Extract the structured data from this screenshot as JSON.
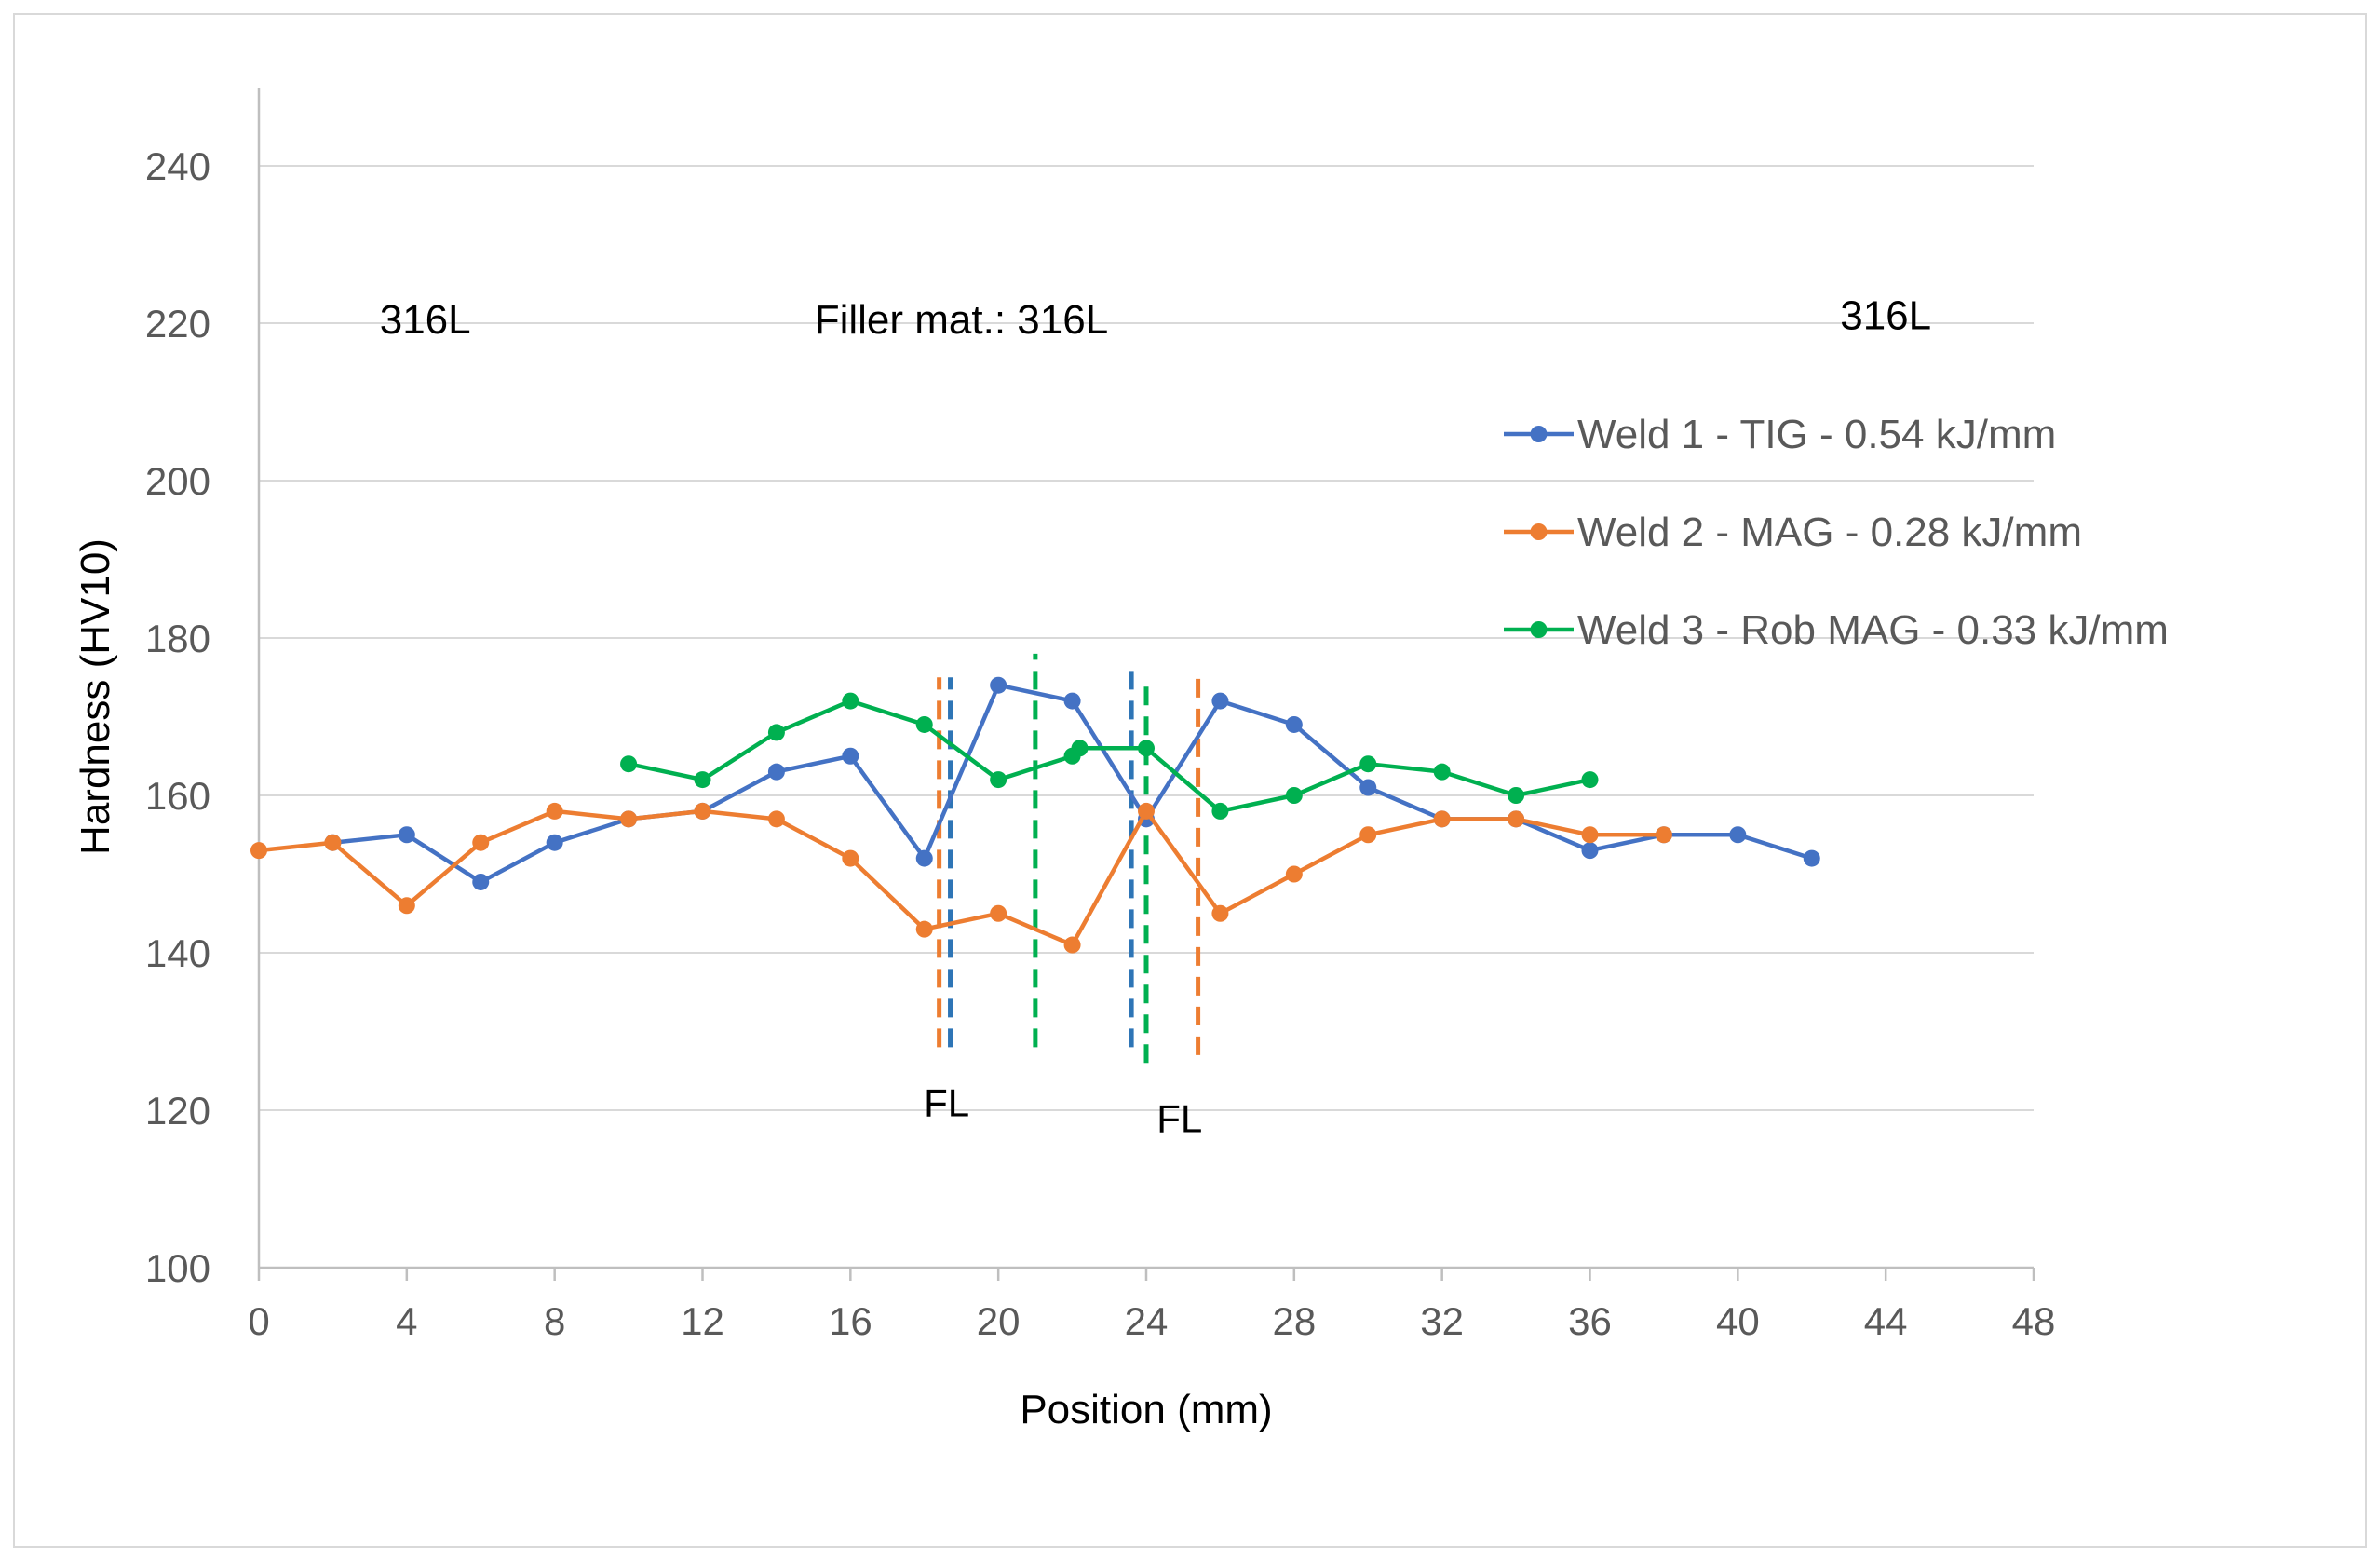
{
  "chart_data": {
    "type": "line",
    "title": "",
    "xlabel": "Position (mm)",
    "ylabel": "Hardness (HV10)",
    "xlim": [
      0,
      48
    ],
    "ylim": [
      100,
      250
    ],
    "xticks": [
      0,
      4,
      8,
      12,
      16,
      20,
      24,
      28,
      32,
      36,
      40,
      44,
      48
    ],
    "yticks": [
      100,
      120,
      140,
      160,
      180,
      200,
      220,
      240
    ],
    "grid": "horizontal",
    "legend_position": "right",
    "series": [
      {
        "name": "Weld 1 - TIG - 0.54 kJ/mm",
        "color": "#4472C4",
        "x": [
          2,
          4,
          6,
          8,
          10,
          12,
          14,
          16,
          18,
          20,
          22,
          24,
          26,
          28,
          30,
          32,
          34,
          36,
          38,
          40,
          42
        ],
        "y": [
          154,
          155,
          149,
          154,
          157,
          158,
          163,
          165,
          152,
          174,
          172,
          157,
          172,
          169,
          161,
          157,
          157,
          153,
          155,
          155,
          152
        ]
      },
      {
        "name": "Weld 2 - MAG - 0.28 kJ/mm",
        "color": "#ED7D31",
        "x": [
          0,
          2,
          4,
          6,
          8,
          10,
          12,
          14,
          16,
          18,
          20,
          22,
          24,
          26,
          28,
          30,
          32,
          34,
          36,
          38
        ],
        "y": [
          153,
          154,
          146,
          154,
          158,
          157,
          158,
          157,
          152,
          143,
          145,
          141,
          158,
          145,
          150,
          155,
          157,
          157,
          155,
          155
        ]
      },
      {
        "name": "Weld 3 - Rob MAG - 0.33 kJ/mm",
        "color": "#00B050",
        "x": [
          10,
          12,
          14,
          16,
          18,
          20,
          22,
          22.2,
          24,
          26,
          28,
          30,
          32,
          34,
          36
        ],
        "y": [
          164,
          162,
          168,
          172,
          169,
          162,
          165,
          166,
          166,
          158,
          160,
          164,
          163,
          160,
          162
        ]
      }
    ],
    "fusion_lines": [
      {
        "x": 18.4,
        "y_from": 128,
        "y_to": 175,
        "color": "#ED7D31"
      },
      {
        "x": 18.7,
        "y_from": 128,
        "y_to": 175,
        "color": "#2E75B6"
      },
      {
        "x": 21.0,
        "y_from": 128,
        "y_to": 178,
        "color": "#00B050"
      },
      {
        "x": 23.6,
        "y_from": 128,
        "y_to": 177,
        "color": "#2E75B6"
      },
      {
        "x": 24.0,
        "y_from": 126,
        "y_to": 175,
        "color": "#00B050"
      },
      {
        "x": 25.4,
        "y_from": 127,
        "y_to": 176,
        "color": "#ED7D31"
      }
    ],
    "annotations": [
      {
        "text": "316L",
        "x": 4.5,
        "y": 220.5
      },
      {
        "text": "Filler mat.: 316L",
        "x": 19.0,
        "y": 220.5
      },
      {
        "text": "316L",
        "x": 44.0,
        "y": 221.0
      },
      {
        "text": "FL",
        "x": 18.6,
        "y": 121
      },
      {
        "text": "FL",
        "x": 24.9,
        "y": 119
      }
    ]
  },
  "colors": {
    "axis": "#bfbfbf",
    "grid": "#d9d9d9",
    "tick_text": "#595959",
    "label_text": "#000000",
    "weld1": "#4472C4",
    "weld2": "#ED7D31",
    "weld3": "#00B050"
  }
}
